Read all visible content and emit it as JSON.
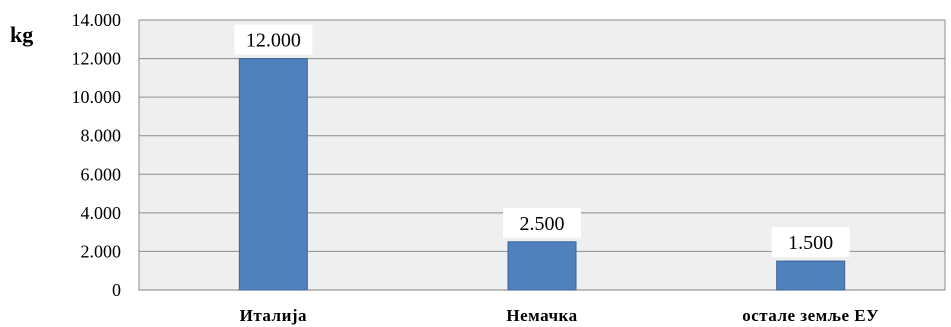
{
  "chart_data": {
    "type": "bar",
    "title": "",
    "xlabel": "",
    "ylabel": "kg",
    "categories": [
      "Италија",
      "Немачка",
      "остале земље ЕУ"
    ],
    "values": [
      12000,
      2500,
      1500
    ],
    "value_labels": [
      "12.000",
      "2.500",
      "1.500"
    ],
    "ylim": [
      0,
      14000
    ],
    "yticks": [
      0,
      2000,
      4000,
      6000,
      8000,
      10000,
      12000,
      14000
    ],
    "ytick_labels": [
      "0",
      "2.000",
      "4.000",
      "6.000",
      "8.000",
      "10.000",
      "12.000",
      "14.000"
    ],
    "grid": true,
    "legend": "none",
    "colors": {
      "bar_fill": "#4f81bd",
      "bar_stroke": "#3a6595",
      "plot_background": "#efefef",
      "gridline": "#8c8c8c"
    }
  }
}
